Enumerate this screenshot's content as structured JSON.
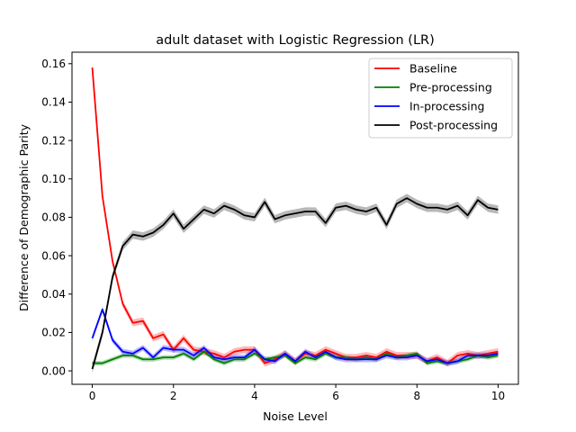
{
  "chart_data": {
    "type": "line",
    "title": "adult dataset with Logistic Regression (LR)",
    "xlabel": "Noise Level",
    "ylabel": "Difference of Demographic Parity",
    "xlim": [
      -0.5,
      10.5
    ],
    "ylim": [
      -0.007,
      0.166
    ],
    "xticks": [
      0,
      2,
      4,
      6,
      8,
      10
    ],
    "xtick_labels": [
      "0",
      "2",
      "4",
      "6",
      "8",
      "10"
    ],
    "yticks": [
      0.0,
      0.02,
      0.04,
      0.06,
      0.08,
      0.1,
      0.12,
      0.14,
      0.16
    ],
    "ytick_labels": [
      "0.00",
      "0.02",
      "0.04",
      "0.06",
      "0.08",
      "0.10",
      "0.12",
      "0.14",
      "0.16"
    ],
    "grid": false,
    "legend_position": "top-right",
    "x": [
      0.0,
      0.25,
      0.5,
      0.75,
      1.0,
      1.25,
      1.5,
      1.75,
      2.0,
      2.25,
      2.5,
      2.75,
      3.0,
      3.25,
      3.5,
      3.75,
      4.0,
      4.25,
      4.5,
      4.75,
      5.0,
      5.25,
      5.5,
      5.75,
      6.0,
      6.25,
      6.5,
      6.75,
      7.0,
      7.25,
      7.5,
      7.75,
      8.0,
      8.25,
      8.5,
      8.75,
      9.0,
      9.25,
      9.5,
      9.75,
      10.0
    ],
    "series": [
      {
        "name": "Baseline",
        "color": "#ff0000",
        "band": 0.0018,
        "values": [
          0.158,
          0.091,
          0.057,
          0.035,
          0.025,
          0.026,
          0.017,
          0.019,
          0.011,
          0.017,
          0.011,
          0.01,
          0.009,
          0.007,
          0.01,
          0.011,
          0.011,
          0.004,
          0.006,
          0.009,
          0.005,
          0.009,
          0.008,
          0.011,
          0.009,
          0.007,
          0.007,
          0.008,
          0.007,
          0.01,
          0.008,
          0.008,
          0.008,
          0.005,
          0.007,
          0.004,
          0.008,
          0.009,
          0.008,
          0.009,
          0.01
        ]
      },
      {
        "name": "Pre-processing",
        "color": "#008000",
        "band": 0.0012,
        "values": [
          0.004,
          0.004,
          0.006,
          0.008,
          0.008,
          0.006,
          0.006,
          0.007,
          0.007,
          0.009,
          0.006,
          0.01,
          0.006,
          0.004,
          0.006,
          0.006,
          0.009,
          0.006,
          0.007,
          0.008,
          0.004,
          0.007,
          0.006,
          0.009,
          0.007,
          0.007,
          0.006,
          0.007,
          0.006,
          0.009,
          0.007,
          0.008,
          0.009,
          0.004,
          0.005,
          0.004,
          0.005,
          0.006,
          0.008,
          0.007,
          0.008
        ]
      },
      {
        "name": "In-processing",
        "color": "#0000ff",
        "band": 0.0015,
        "values": [
          0.017,
          0.032,
          0.016,
          0.01,
          0.009,
          0.012,
          0.007,
          0.012,
          0.011,
          0.011,
          0.008,
          0.012,
          0.007,
          0.006,
          0.007,
          0.007,
          0.011,
          0.006,
          0.005,
          0.009,
          0.005,
          0.01,
          0.007,
          0.01,
          0.007,
          0.006,
          0.006,
          0.006,
          0.006,
          0.008,
          0.007,
          0.007,
          0.008,
          0.005,
          0.006,
          0.004,
          0.005,
          0.008,
          0.008,
          0.008,
          0.009
        ]
      },
      {
        "name": "Post-processing",
        "color": "#000000",
        "band": 0.0022,
        "values": [
          0.001,
          0.02,
          0.049,
          0.065,
          0.071,
          0.07,
          0.072,
          0.076,
          0.082,
          0.074,
          0.079,
          0.084,
          0.082,
          0.086,
          0.084,
          0.081,
          0.08,
          0.088,
          0.079,
          0.081,
          0.082,
          0.083,
          0.083,
          0.077,
          0.085,
          0.086,
          0.084,
          0.083,
          0.085,
          0.076,
          0.087,
          0.09,
          0.087,
          0.085,
          0.085,
          0.084,
          0.086,
          0.081,
          0.089,
          0.085,
          0.084
        ]
      }
    ]
  }
}
